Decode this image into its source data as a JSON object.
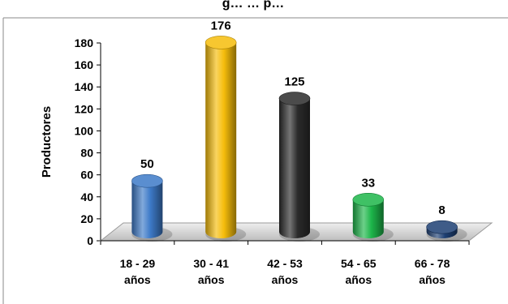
{
  "chart_data": {
    "type": "bar",
    "title": "g… … p…",
    "ylabel": "Productores",
    "xlabel": "",
    "categories": [
      [
        "18 - 29",
        "años"
      ],
      [
        "30 - 41",
        "años"
      ],
      [
        "42 - 53",
        "años"
      ],
      [
        "54 - 65",
        "años"
      ],
      [
        "66 - 78",
        "años"
      ]
    ],
    "values": [
      50,
      176,
      125,
      33,
      8
    ],
    "data_labels": [
      "50",
      "176",
      "125",
      "33",
      "8"
    ],
    "bar_colors": [
      "#3d7ac8",
      "#f6bd0b",
      "#2b2b2b",
      "#1db64a",
      "#1d3f73"
    ],
    "ylim": [
      0,
      180
    ],
    "yticks": [
      "0",
      "20",
      "40",
      "60",
      "80",
      "100",
      "120",
      "140",
      "160",
      "180"
    ],
    "grid": false,
    "legend": "none",
    "style": "3d-cylinder"
  }
}
